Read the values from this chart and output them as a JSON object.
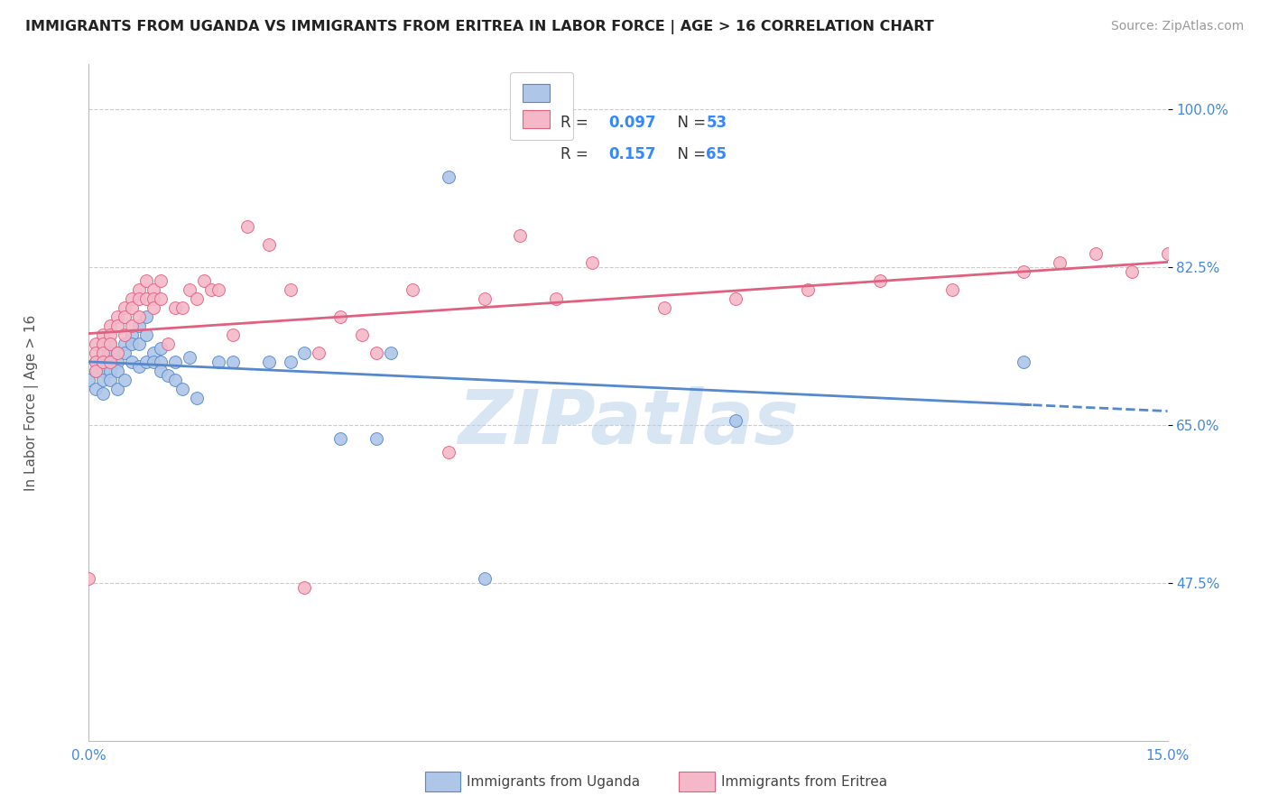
{
  "title": "IMMIGRANTS FROM UGANDA VS IMMIGRANTS FROM ERITREA IN LABOR FORCE | AGE > 16 CORRELATION CHART",
  "source": "Source: ZipAtlas.com",
  "ylabel": "In Labor Force | Age > 16",
  "xlim": [
    0.0,
    0.15
  ],
  "ylim": [
    0.3,
    1.05
  ],
  "ytick_positions": [
    0.475,
    0.65,
    0.825,
    1.0
  ],
  "yticklabels_right": [
    "47.5%",
    "65.0%",
    "82.5%",
    "100.0%"
  ],
  "uganda_color": "#aec6e8",
  "eritrea_color": "#f5b8c8",
  "uganda_line_color": "#5588cc",
  "eritrea_line_color": "#e06080",
  "uganda_R": 0.097,
  "uganda_N": 53,
  "eritrea_R": 0.157,
  "eritrea_N": 65,
  "watermark": "ZIPatlas",
  "background_color": "#ffffff",
  "grid_color": "#cccccc",
  "uganda_x": [
    0.0,
    0.001,
    0.001,
    0.001,
    0.002,
    0.002,
    0.002,
    0.002,
    0.002,
    0.003,
    0.003,
    0.003,
    0.003,
    0.003,
    0.004,
    0.004,
    0.004,
    0.004,
    0.005,
    0.005,
    0.005,
    0.006,
    0.006,
    0.006,
    0.007,
    0.007,
    0.007,
    0.008,
    0.008,
    0.008,
    0.009,
    0.009,
    0.01,
    0.01,
    0.01,
    0.011,
    0.012,
    0.012,
    0.013,
    0.014,
    0.015,
    0.018,
    0.02,
    0.025,
    0.028,
    0.03,
    0.035,
    0.04,
    0.042,
    0.05,
    0.055,
    0.09,
    0.13
  ],
  "uganda_y": [
    0.7,
    0.72,
    0.71,
    0.69,
    0.73,
    0.72,
    0.71,
    0.7,
    0.685,
    0.74,
    0.73,
    0.72,
    0.71,
    0.7,
    0.73,
    0.72,
    0.71,
    0.69,
    0.74,
    0.73,
    0.7,
    0.75,
    0.74,
    0.72,
    0.76,
    0.74,
    0.715,
    0.77,
    0.75,
    0.72,
    0.73,
    0.72,
    0.735,
    0.72,
    0.71,
    0.705,
    0.72,
    0.7,
    0.69,
    0.725,
    0.68,
    0.72,
    0.72,
    0.72,
    0.72,
    0.73,
    0.635,
    0.635,
    0.73,
    0.925,
    0.48,
    0.655,
    0.72
  ],
  "eritrea_x": [
    0.0,
    0.001,
    0.001,
    0.001,
    0.001,
    0.002,
    0.002,
    0.002,
    0.002,
    0.003,
    0.003,
    0.003,
    0.003,
    0.004,
    0.004,
    0.004,
    0.005,
    0.005,
    0.005,
    0.006,
    0.006,
    0.006,
    0.007,
    0.007,
    0.007,
    0.008,
    0.008,
    0.009,
    0.009,
    0.009,
    0.01,
    0.01,
    0.011,
    0.012,
    0.013,
    0.014,
    0.015,
    0.016,
    0.017,
    0.018,
    0.02,
    0.022,
    0.025,
    0.028,
    0.03,
    0.032,
    0.035,
    0.038,
    0.04,
    0.045,
    0.05,
    0.055,
    0.06,
    0.065,
    0.07,
    0.08,
    0.09,
    0.1,
    0.11,
    0.12,
    0.13,
    0.135,
    0.14,
    0.145,
    0.15
  ],
  "eritrea_y": [
    0.48,
    0.74,
    0.73,
    0.72,
    0.71,
    0.75,
    0.74,
    0.73,
    0.72,
    0.76,
    0.75,
    0.74,
    0.72,
    0.77,
    0.76,
    0.73,
    0.78,
    0.77,
    0.75,
    0.79,
    0.78,
    0.76,
    0.8,
    0.79,
    0.77,
    0.81,
    0.79,
    0.8,
    0.79,
    0.78,
    0.81,
    0.79,
    0.74,
    0.78,
    0.78,
    0.8,
    0.79,
    0.81,
    0.8,
    0.8,
    0.75,
    0.87,
    0.85,
    0.8,
    0.47,
    0.73,
    0.77,
    0.75,
    0.73,
    0.8,
    0.62,
    0.79,
    0.86,
    0.79,
    0.83,
    0.78,
    0.79,
    0.8,
    0.81,
    0.8,
    0.82,
    0.83,
    0.84,
    0.82,
    0.84
  ]
}
